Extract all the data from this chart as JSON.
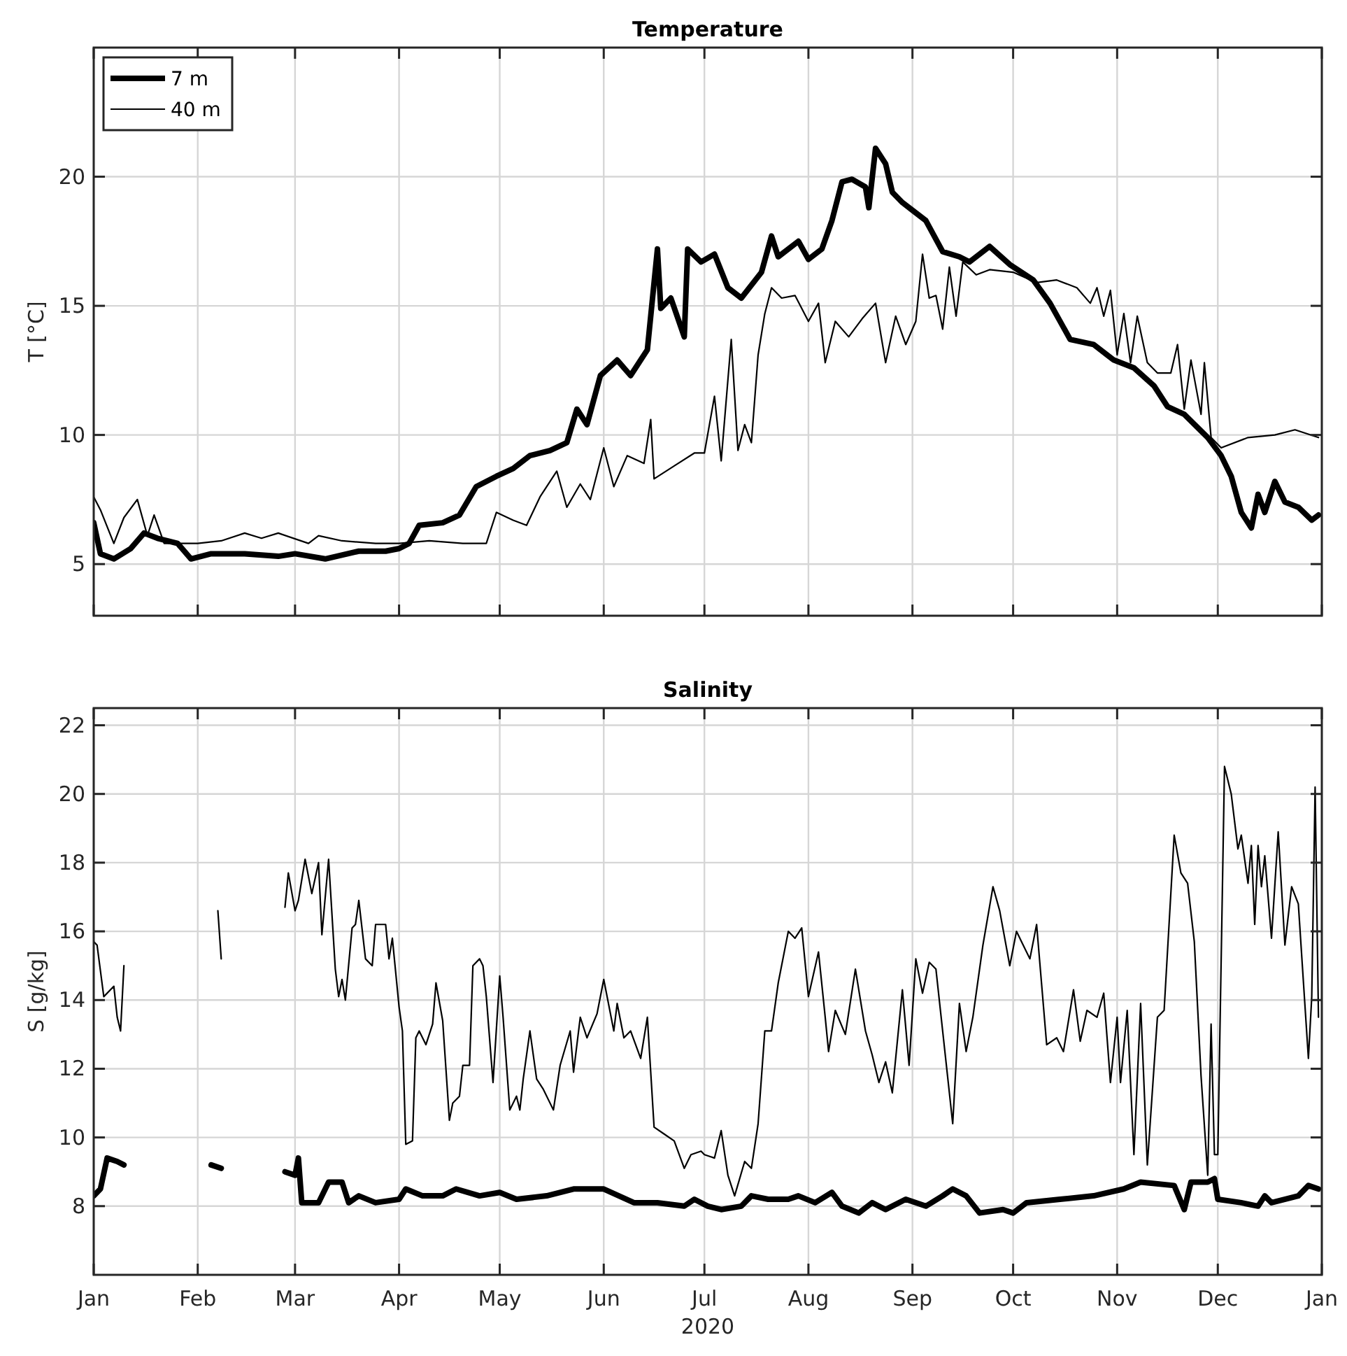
{
  "chart_data": [
    {
      "type": "line",
      "title": "Temperature",
      "ylabel": "T [°C]",
      "xlim": [
        "2020-01-01",
        "2021-01-01"
      ],
      "xticks": [
        {
          "value": "2020-01-01",
          "label": null
        },
        {
          "value": "2020-02-01",
          "label": null
        },
        {
          "value": "2020-03-01",
          "label": null
        },
        {
          "value": "2020-04-01",
          "label": null
        },
        {
          "value": "2020-05-01",
          "label": null
        },
        {
          "value": "2020-06-01",
          "label": null
        },
        {
          "value": "2020-07-01",
          "label": null
        },
        {
          "value": "2020-08-01",
          "label": null
        },
        {
          "value": "2020-09-01",
          "label": null
        },
        {
          "value": "2020-10-01",
          "label": null
        },
        {
          "value": "2020-11-01",
          "label": null
        },
        {
          "value": "2020-12-01",
          "label": null
        },
        {
          "value": "2021-01-01",
          "label": null
        }
      ],
      "ylim": [
        3,
        25
      ],
      "yticks": [
        5,
        10,
        15,
        20
      ],
      "grid": true,
      "legend": "top left",
      "tick_labels": "y",
      "series": [
        {
          "name": "7 m",
          "color": "#000000",
          "x": [
            "2020-01-01",
            "2020-01-03",
            "2020-01-07",
            "2020-01-12",
            "2020-01-16",
            "2020-01-20",
            "2020-01-26",
            "2020-01-30",
            "2020-02-05",
            "2020-02-15",
            "2020-02-25",
            "2020-03-01",
            "2020-03-10",
            "2020-03-20",
            "2020-03-28",
            "2020-04-01",
            "2020-04-04",
            "2020-04-07",
            "2020-04-14",
            "2020-04-19",
            "2020-04-24",
            "2020-04-30",
            "2020-05-05",
            "2020-05-10",
            "2020-05-16",
            "2020-05-21",
            "2020-05-24",
            "2020-05-27",
            "2020-05-31",
            "2020-06-05",
            "2020-06-09",
            "2020-06-14",
            "2020-06-17",
            "2020-06-18",
            "2020-06-21",
            "2020-06-25",
            "2020-06-26",
            "2020-06-30",
            "2020-07-04",
            "2020-07-08",
            "2020-07-12",
            "2020-07-18",
            "2020-07-21",
            "2020-07-23",
            "2020-07-29",
            "2020-08-01",
            "2020-08-05",
            "2020-08-08",
            "2020-08-11",
            "2020-08-14",
            "2020-08-18",
            "2020-08-19",
            "2020-08-21",
            "2020-08-24",
            "2020-08-26",
            "2020-08-29",
            "2020-09-01",
            "2020-09-05",
            "2020-09-10",
            "2020-09-15",
            "2020-09-18",
            "2020-09-24",
            "2020-09-30",
            "2020-10-07",
            "2020-10-12",
            "2020-10-18",
            "2020-10-25",
            "2020-10-31",
            "2020-11-06",
            "2020-11-12",
            "2020-11-16",
            "2020-11-21",
            "2020-11-28",
            "2020-12-02",
            "2020-12-05",
            "2020-12-08",
            "2020-12-11",
            "2020-12-13",
            "2020-12-15",
            "2020-12-18",
            "2020-12-21",
            "2020-12-25",
            "2020-12-29",
            "2020-12-31"
          ],
          "values": [
            6.6,
            5.4,
            5.2,
            5.6,
            6.2,
            6.0,
            5.8,
            5.2,
            5.4,
            5.4,
            5.3,
            5.4,
            5.2,
            5.5,
            5.5,
            5.6,
            5.8,
            6.5,
            6.6,
            6.9,
            8.0,
            8.4,
            8.7,
            9.2,
            9.4,
            9.7,
            11.0,
            10.4,
            12.3,
            12.9,
            12.3,
            13.3,
            17.2,
            14.9,
            15.3,
            13.8,
            17.2,
            16.7,
            17.0,
            15.7,
            15.3,
            16.3,
            17.7,
            16.9,
            17.5,
            16.8,
            17.2,
            18.3,
            19.8,
            19.9,
            19.6,
            18.8,
            21.1,
            20.5,
            19.4,
            19.0,
            18.7,
            18.3,
            17.1,
            16.9,
            16.7,
            17.3,
            16.6,
            16.0,
            15.1,
            13.7,
            13.5,
            12.9,
            12.6,
            11.9,
            11.1,
            10.8,
            9.9,
            9.2,
            8.4,
            7.0,
            6.4,
            7.7,
            7.0,
            8.2,
            7.4,
            7.2,
            6.7,
            6.9
          ]
        },
        {
          "name": "40 m",
          "color": "#000000",
          "x": [
            "2020-01-01",
            "2020-01-03",
            "2020-01-07",
            "2020-01-10",
            "2020-01-14",
            "2020-01-17",
            "2020-01-19",
            "2020-01-22",
            "2020-02-01",
            "2020-02-08",
            "2020-02-15",
            "2020-02-20",
            "2020-02-25",
            "2020-03-05",
            "2020-03-08",
            "2020-03-15",
            "2020-03-25",
            "2020-04-01",
            "2020-04-10",
            "2020-04-20",
            "2020-04-27",
            "2020-04-30",
            "2020-05-05",
            "2020-05-09",
            "2020-05-13",
            "2020-05-18",
            "2020-05-21",
            "2020-05-25",
            "2020-05-28",
            "2020-06-01",
            "2020-06-04",
            "2020-06-08",
            "2020-06-13",
            "2020-06-15",
            "2020-06-16",
            "2020-06-22",
            "2020-06-28",
            "2020-07-01",
            "2020-07-04",
            "2020-07-06",
            "2020-07-09",
            "2020-07-11",
            "2020-07-13",
            "2020-07-15",
            "2020-07-17",
            "2020-07-19",
            "2020-07-21",
            "2020-07-24",
            "2020-07-28",
            "2020-08-01",
            "2020-08-04",
            "2020-08-06",
            "2020-08-09",
            "2020-08-13",
            "2020-08-17",
            "2020-08-21",
            "2020-08-24",
            "2020-08-27",
            "2020-08-30",
            "2020-09-02",
            "2020-09-04",
            "2020-09-06",
            "2020-09-08",
            "2020-09-10",
            "2020-09-12",
            "2020-09-14",
            "2020-09-16",
            "2020-09-20",
            "2020-09-24",
            "2020-10-01",
            "2020-10-08",
            "2020-10-14",
            "2020-10-20",
            "2020-10-24",
            "2020-10-26",
            "2020-10-28",
            "2020-10-30",
            "2020-11-01",
            "2020-11-03",
            "2020-11-05",
            "2020-11-07",
            "2020-11-10",
            "2020-11-13",
            "2020-11-17",
            "2020-11-19",
            "2020-11-21",
            "2020-11-23",
            "2020-11-26",
            "2020-11-27",
            "2020-11-29",
            "2020-12-02",
            "2020-12-10",
            "2020-12-18",
            "2020-12-24",
            "2020-12-31"
          ],
          "values": [
            7.6,
            7.1,
            5.8,
            6.8,
            7.5,
            6.1,
            6.9,
            5.8,
            5.8,
            5.9,
            6.2,
            6.0,
            6.2,
            5.8,
            6.1,
            5.9,
            5.8,
            5.8,
            5.9,
            5.8,
            5.8,
            7.0,
            6.7,
            6.5,
            7.6,
            8.6,
            7.2,
            8.1,
            7.5,
            9.5,
            8.0,
            9.2,
            8.9,
            10.6,
            8.3,
            8.8,
            9.3,
            9.3,
            11.5,
            9.0,
            13.7,
            9.4,
            10.4,
            9.7,
            13.1,
            14.7,
            15.7,
            15.3,
            15.4,
            14.4,
            15.1,
            12.8,
            14.4,
            13.8,
            14.5,
            15.1,
            12.8,
            14.6,
            13.5,
            14.4,
            17.0,
            15.3,
            15.4,
            14.1,
            16.5,
            14.6,
            16.7,
            16.2,
            16.4,
            16.3,
            15.9,
            16.0,
            15.7,
            15.1,
            15.7,
            14.6,
            15.6,
            13.1,
            14.7,
            12.8,
            14.6,
            12.8,
            12.4,
            12.4,
            13.5,
            11.0,
            12.9,
            10.8,
            12.8,
            9.9,
            9.5,
            9.9,
            10.0,
            10.2,
            9.9
          ]
        }
      ]
    },
    {
      "type": "line",
      "title": "Salinity",
      "ylabel": "S [g/kg]",
      "xlabel": "2020",
      "xlim": [
        "2020-01-01",
        "2021-01-01"
      ],
      "xticks": [
        {
          "value": "2020-01-01",
          "label": "Jan"
        },
        {
          "value": "2020-02-01",
          "label": "Feb"
        },
        {
          "value": "2020-03-01",
          "label": "Mar"
        },
        {
          "value": "2020-04-01",
          "label": "Apr"
        },
        {
          "value": "2020-05-01",
          "label": "May"
        },
        {
          "value": "2020-06-01",
          "label": "Jun"
        },
        {
          "value": "2020-07-01",
          "label": "Jul"
        },
        {
          "value": "2020-08-01",
          "label": "Aug"
        },
        {
          "value": "2020-09-01",
          "label": "Sep"
        },
        {
          "value": "2020-10-01",
          "label": "Oct"
        },
        {
          "value": "2020-11-01",
          "label": "Nov"
        },
        {
          "value": "2020-12-01",
          "label": "Dec"
        },
        {
          "value": "2021-01-01",
          "label": "Jan"
        }
      ],
      "ylim": [
        6,
        22.5
      ],
      "yticks": [
        8,
        10,
        12,
        14,
        16,
        18,
        20,
        22
      ],
      "grid": true,
      "series": [
        {
          "color": "#000000",
          "x": [
            "2020-01-01",
            "2020-01-03",
            "2020-01-05",
            "2020-01-08",
            "2020-01-10",
            "2020-01-20",
            "2020-02-05",
            "2020-02-08",
            "2020-02-17",
            "2020-02-27",
            "2020-03-01",
            "2020-03-02",
            "2020-03-03",
            "2020-03-08",
            "2020-03-11",
            "2020-03-15",
            "2020-03-17",
            "2020-03-20",
            "2020-03-25",
            "2020-04-01",
            "2020-04-03",
            "2020-04-08",
            "2020-04-14",
            "2020-04-18",
            "2020-04-25",
            "2020-05-01",
            "2020-05-06",
            "2020-05-15",
            "2020-05-23",
            "2020-06-01",
            "2020-06-10",
            "2020-06-17",
            "2020-06-25",
            "2020-06-28",
            "2020-07-02",
            "2020-07-06",
            "2020-07-12",
            "2020-07-15",
            "2020-07-20",
            "2020-07-26",
            "2020-07-29",
            "2020-08-03",
            "2020-08-08",
            "2020-08-11",
            "2020-08-16",
            "2020-08-20",
            "2020-08-24",
            "2020-08-30",
            "2020-09-05",
            "2020-09-10",
            "2020-09-13",
            "2020-09-17",
            "2020-09-21",
            "2020-09-28",
            "2020-10-01",
            "2020-10-05",
            "2020-10-15",
            "2020-10-25",
            "2020-11-03",
            "2020-11-08",
            "2020-11-18",
            "2020-11-21",
            "2020-11-23",
            "2020-11-28",
            "2020-11-30",
            "2020-12-01",
            "2020-12-08",
            "2020-12-13",
            "2020-12-15",
            "2020-12-17",
            "2020-12-25",
            "2020-12-28",
            "2020-12-31"
          ],
          "values": [
            8.3,
            8.5,
            9.4,
            9.3,
            9.2,
            null,
            9.2,
            9.1,
            null,
            9.0,
            8.9,
            9.4,
            8.1,
            8.1,
            8.7,
            8.7,
            8.1,
            8.3,
            8.1,
            8.2,
            8.5,
            8.3,
            8.3,
            8.5,
            8.3,
            8.4,
            8.2,
            8.3,
            8.5,
            8.5,
            8.1,
            8.1,
            8.0,
            8.2,
            8.0,
            7.9,
            8.0,
            8.3,
            8.2,
            8.2,
            8.3,
            8.1,
            8.4,
            8.0,
            7.8,
            8.1,
            7.9,
            8.2,
            8.0,
            8.3,
            8.5,
            8.3,
            7.8,
            7.9,
            7.8,
            8.1,
            8.2,
            8.3,
            8.5,
            8.7,
            8.6,
            7.9,
            8.7,
            8.7,
            8.8,
            8.2,
            8.1,
            8.0,
            8.3,
            8.1,
            8.3,
            8.6,
            8.5
          ]
        },
        {
          "color": "#000000",
          "x": [
            "2020-01-01",
            "2020-01-02",
            "2020-01-04",
            "2020-01-06",
            "2020-01-07",
            "2020-01-08",
            "2020-01-09",
            "2020-01-10",
            "2020-01-20",
            "2020-02-07",
            "2020-02-08",
            "2020-02-17",
            "2020-02-27",
            "2020-02-28",
            "2020-03-01",
            "2020-03-02",
            "2020-03-04",
            "2020-03-06",
            "2020-03-08",
            "2020-03-09",
            "2020-03-11",
            "2020-03-13",
            "2020-03-14",
            "2020-03-15",
            "2020-03-16",
            "2020-03-18",
            "2020-03-19",
            "2020-03-20",
            "2020-03-22",
            "2020-03-24",
            "2020-03-25",
            "2020-03-28",
            "2020-03-29",
            "2020-03-30",
            "2020-04-01",
            "2020-04-02",
            "2020-04-03",
            "2020-04-05",
            "2020-04-06",
            "2020-04-07",
            "2020-04-09",
            "2020-04-11",
            "2020-04-12",
            "2020-04-14",
            "2020-04-16",
            "2020-04-17",
            "2020-04-19",
            "2020-04-20",
            "2020-04-22",
            "2020-04-23",
            "2020-04-25",
            "2020-04-26",
            "2020-04-27",
            "2020-04-29",
            "2020-05-01",
            "2020-05-02",
            "2020-05-04",
            "2020-05-06",
            "2020-05-07",
            "2020-05-08",
            "2020-05-10",
            "2020-05-12",
            "2020-05-14",
            "2020-05-17",
            "2020-05-19",
            "2020-05-22",
            "2020-05-23",
            "2020-05-25",
            "2020-05-27",
            "2020-05-30",
            "2020-06-01",
            "2020-06-04",
            "2020-06-05",
            "2020-06-07",
            "2020-06-09",
            "2020-06-12",
            "2020-06-14",
            "2020-06-16",
            "2020-06-19",
            "2020-06-22",
            "2020-06-25",
            "2020-06-27",
            "2020-06-30",
            "2020-07-01",
            "2020-07-04",
            "2020-07-06",
            "2020-07-08",
            "2020-07-10",
            "2020-07-13",
            "2020-07-15",
            "2020-07-17",
            "2020-07-19",
            "2020-07-21",
            "2020-07-23",
            "2020-07-26",
            "2020-07-28",
            "2020-07-30",
            "2020-08-01",
            "2020-08-04",
            "2020-08-06",
            "2020-08-07",
            "2020-08-09",
            "2020-08-12",
            "2020-08-15",
            "2020-08-18",
            "2020-08-20",
            "2020-08-22",
            "2020-08-24",
            "2020-08-26",
            "2020-08-29",
            "2020-08-31",
            "2020-09-02",
            "2020-09-04",
            "2020-09-06",
            "2020-09-08",
            "2020-09-11",
            "2020-09-13",
            "2020-09-15",
            "2020-09-17",
            "2020-09-19",
            "2020-09-22",
            "2020-09-25",
            "2020-09-27",
            "2020-09-30",
            "2020-10-02",
            "2020-10-04",
            "2020-10-06",
            "2020-10-08",
            "2020-10-11",
            "2020-10-14",
            "2020-10-16",
            "2020-10-19",
            "2020-10-21",
            "2020-10-23",
            "2020-10-26",
            "2020-10-28",
            "2020-10-30",
            "2020-11-01",
            "2020-11-02",
            "2020-11-04",
            "2020-11-06",
            "2020-11-08",
            "2020-11-10",
            "2020-11-13",
            "2020-11-15",
            "2020-11-18",
            "2020-11-20",
            "2020-11-22",
            "2020-11-24",
            "2020-11-26",
            "2020-11-28",
            "2020-11-29",
            "2020-11-30",
            "2020-12-01",
            "2020-12-03",
            "2020-12-05",
            "2020-12-07",
            "2020-12-08",
            "2020-12-10",
            "2020-12-11",
            "2020-12-12",
            "2020-12-13",
            "2020-12-14",
            "2020-12-15",
            "2020-12-17",
            "2020-12-19",
            "2020-12-21",
            "2020-12-23",
            "2020-12-25",
            "2020-12-28",
            "2020-12-29",
            "2020-12-30",
            "2020-12-31"
          ],
          "values": [
            15.7,
            15.6,
            14.1,
            14.3,
            14.4,
            13.5,
            13.1,
            15.0,
            null,
            16.6,
            15.2,
            null,
            16.7,
            17.7,
            16.6,
            16.9,
            18.1,
            17.1,
            18.0,
            15.9,
            18.1,
            14.9,
            14.1,
            14.6,
            14.0,
            16.1,
            16.2,
            16.9,
            15.2,
            15.0,
            16.2,
            16.2,
            15.2,
            15.8,
            13.8,
            13.1,
            9.8,
            9.9,
            12.9,
            13.1,
            12.7,
            13.3,
            14.5,
            13.4,
            10.5,
            11.0,
            11.2,
            12.1,
            12.1,
            15.0,
            15.2,
            15.0,
            14.1,
            11.6,
            14.7,
            13.5,
            10.8,
            11.2,
            10.8,
            11.7,
            13.1,
            11.7,
            11.4,
            10.8,
            12.1,
            13.1,
            11.9,
            13.5,
            12.9,
            13.6,
            14.6,
            13.1,
            13.9,
            12.9,
            13.1,
            12.3,
            13.5,
            10.3,
            10.1,
            9.9,
            9.1,
            9.5,
            9.6,
            9.5,
            9.4,
            10.2,
            8.9,
            8.3,
            9.3,
            9.1,
            10.4,
            13.1,
            13.1,
            14.5,
            16.0,
            15.8,
            16.1,
            14.1,
            15.4,
            13.5,
            12.5,
            13.7,
            13.0,
            14.9,
            13.1,
            12.4,
            11.6,
            12.2,
            11.3,
            14.3,
            12.1,
            15.2,
            14.2,
            15.1,
            14.9,
            12.2,
            10.4,
            13.9,
            12.5,
            13.5,
            15.6,
            17.3,
            16.6,
            15.0,
            16.0,
            15.6,
            15.2,
            16.2,
            12.7,
            12.9,
            12.5,
            14.3,
            12.8,
            13.7,
            13.5,
            14.2,
            11.6,
            13.5,
            11.6,
            13.7,
            9.5,
            13.9,
            9.2,
            13.5,
            13.7,
            18.8,
            17.7,
            17.4,
            15.7,
            11.8,
            8.9,
            13.3,
            9.5,
            9.5,
            20.8,
            20.0,
            18.4,
            18.8,
            17.4,
            18.5,
            16.2,
            18.5,
            17.3,
            18.2,
            15.8,
            18.9,
            15.6,
            17.3,
            16.8,
            12.3,
            14.1,
            20.2,
            13.5
          ]
        }
      ]
    }
  ]
}
